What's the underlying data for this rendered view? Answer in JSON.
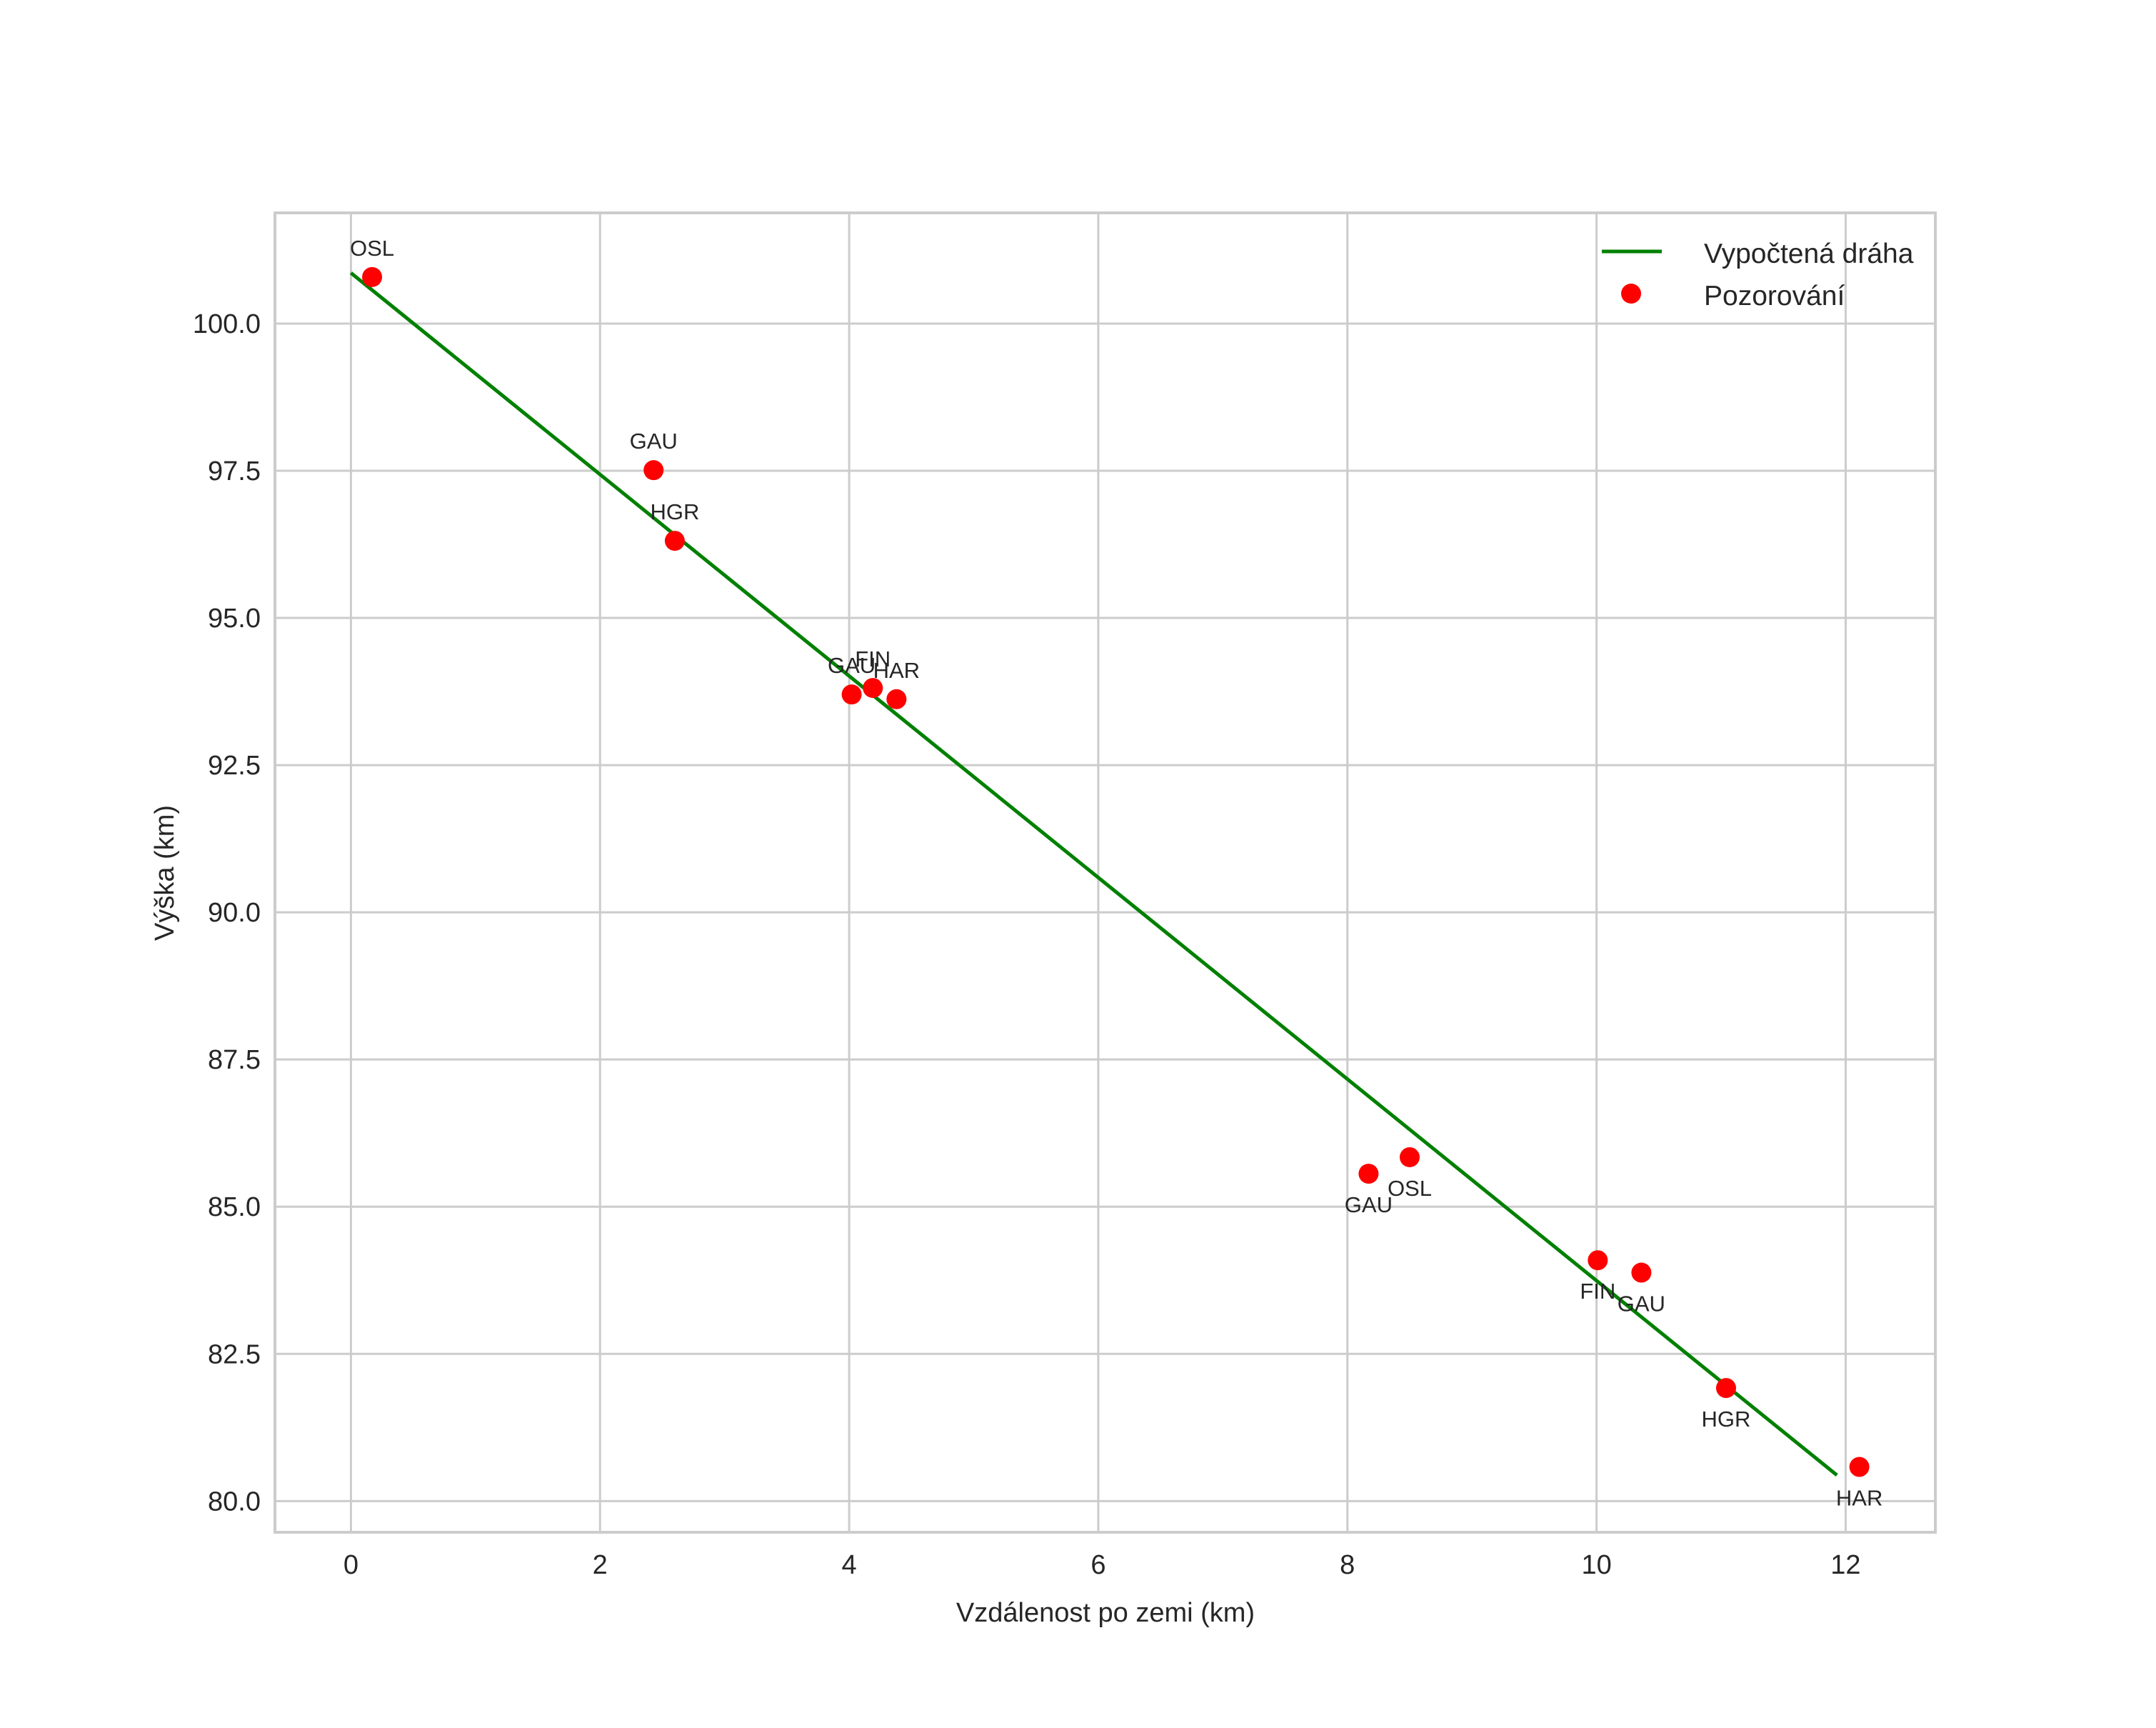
{
  "chart_data": {
    "type": "scatter",
    "title": "",
    "xlabel": "Vzdálenost po zemi (km)",
    "ylabel": "Výška (km)",
    "xlim": [
      -0.61,
      12.72
    ],
    "ylim": [
      79.47,
      101.88
    ],
    "grid": true,
    "x_ticks": [
      0,
      2,
      4,
      6,
      8,
      10,
      12
    ],
    "x_tick_labels": [
      "0",
      "2",
      "4",
      "6",
      "8",
      "10",
      "12"
    ],
    "y_ticks": [
      80.0,
      82.5,
      85.0,
      87.5,
      90.0,
      92.5,
      95.0,
      97.5,
      100.0
    ],
    "y_tick_labels": [
      "80.0",
      "82.5",
      "85.0",
      "87.5",
      "90.0",
      "92.5",
      "95.0",
      "97.5",
      "100.0"
    ],
    "legend_position": "upper right",
    "series": [
      {
        "name": "Vypočtená dráha",
        "type": "line",
        "color": "#008000",
        "x": [
          0.0,
          11.93
        ],
        "y": [
          100.86,
          80.44
        ]
      },
      {
        "name": "Pozorování",
        "type": "scatter",
        "color": "#ff0000",
        "points": [
          {
            "label": "OSL",
            "x": 0.17,
            "y": 100.79,
            "label_pos": "above",
            "dx": 0,
            "dy": -1
          },
          {
            "label": "GAU",
            "x": 2.43,
            "y": 97.51,
            "label_pos": "above",
            "dx": 0,
            "dy": -1
          },
          {
            "label": "HGR",
            "x": 2.6,
            "y": 96.31,
            "label_pos": "above",
            "dx": 0,
            "dy": -1
          },
          {
            "label": "GAU",
            "x": 4.02,
            "y": 93.7,
            "label_pos": "above",
            "dx": 0,
            "dy": -1
          },
          {
            "label": "FIN",
            "x": 4.19,
            "y": 93.81,
            "label_pos": "above",
            "dx": 0,
            "dy": -1
          },
          {
            "label": "HAR",
            "x": 4.38,
            "y": 93.62,
            "label_pos": "above",
            "dx": 0,
            "dy": -1
          },
          {
            "label": "GAU",
            "x": 8.17,
            "y": 85.56,
            "label_pos": "below",
            "dx": 0,
            "dy": 1
          },
          {
            "label": "OSL",
            "x": 8.5,
            "y": 85.84,
            "label_pos": "below",
            "dx": 0,
            "dy": 1
          },
          {
            "label": "FIN",
            "x": 10.01,
            "y": 84.09,
            "label_pos": "below",
            "dx": 0,
            "dy": 1
          },
          {
            "label": "GAU",
            "x": 10.36,
            "y": 83.88,
            "label_pos": "below",
            "dx": 0,
            "dy": 1
          },
          {
            "label": "HGR",
            "x": 11.04,
            "y": 81.92,
            "label_pos": "below",
            "dx": 0,
            "dy": 1
          },
          {
            "label": "HAR",
            "x": 12.11,
            "y": 80.58,
            "label_pos": "below",
            "dx": 0,
            "dy": 1
          }
        ]
      }
    ]
  },
  "legend": {
    "items": [
      {
        "label": "Vypočtená dráha",
        "marker": "line",
        "color": "#008000"
      },
      {
        "label": "Pozorování",
        "marker": "dot",
        "color": "#ff0000"
      }
    ]
  },
  "colors": {
    "grid": "#cccccc",
    "text": "#262626",
    "background": "#ffffff"
  }
}
